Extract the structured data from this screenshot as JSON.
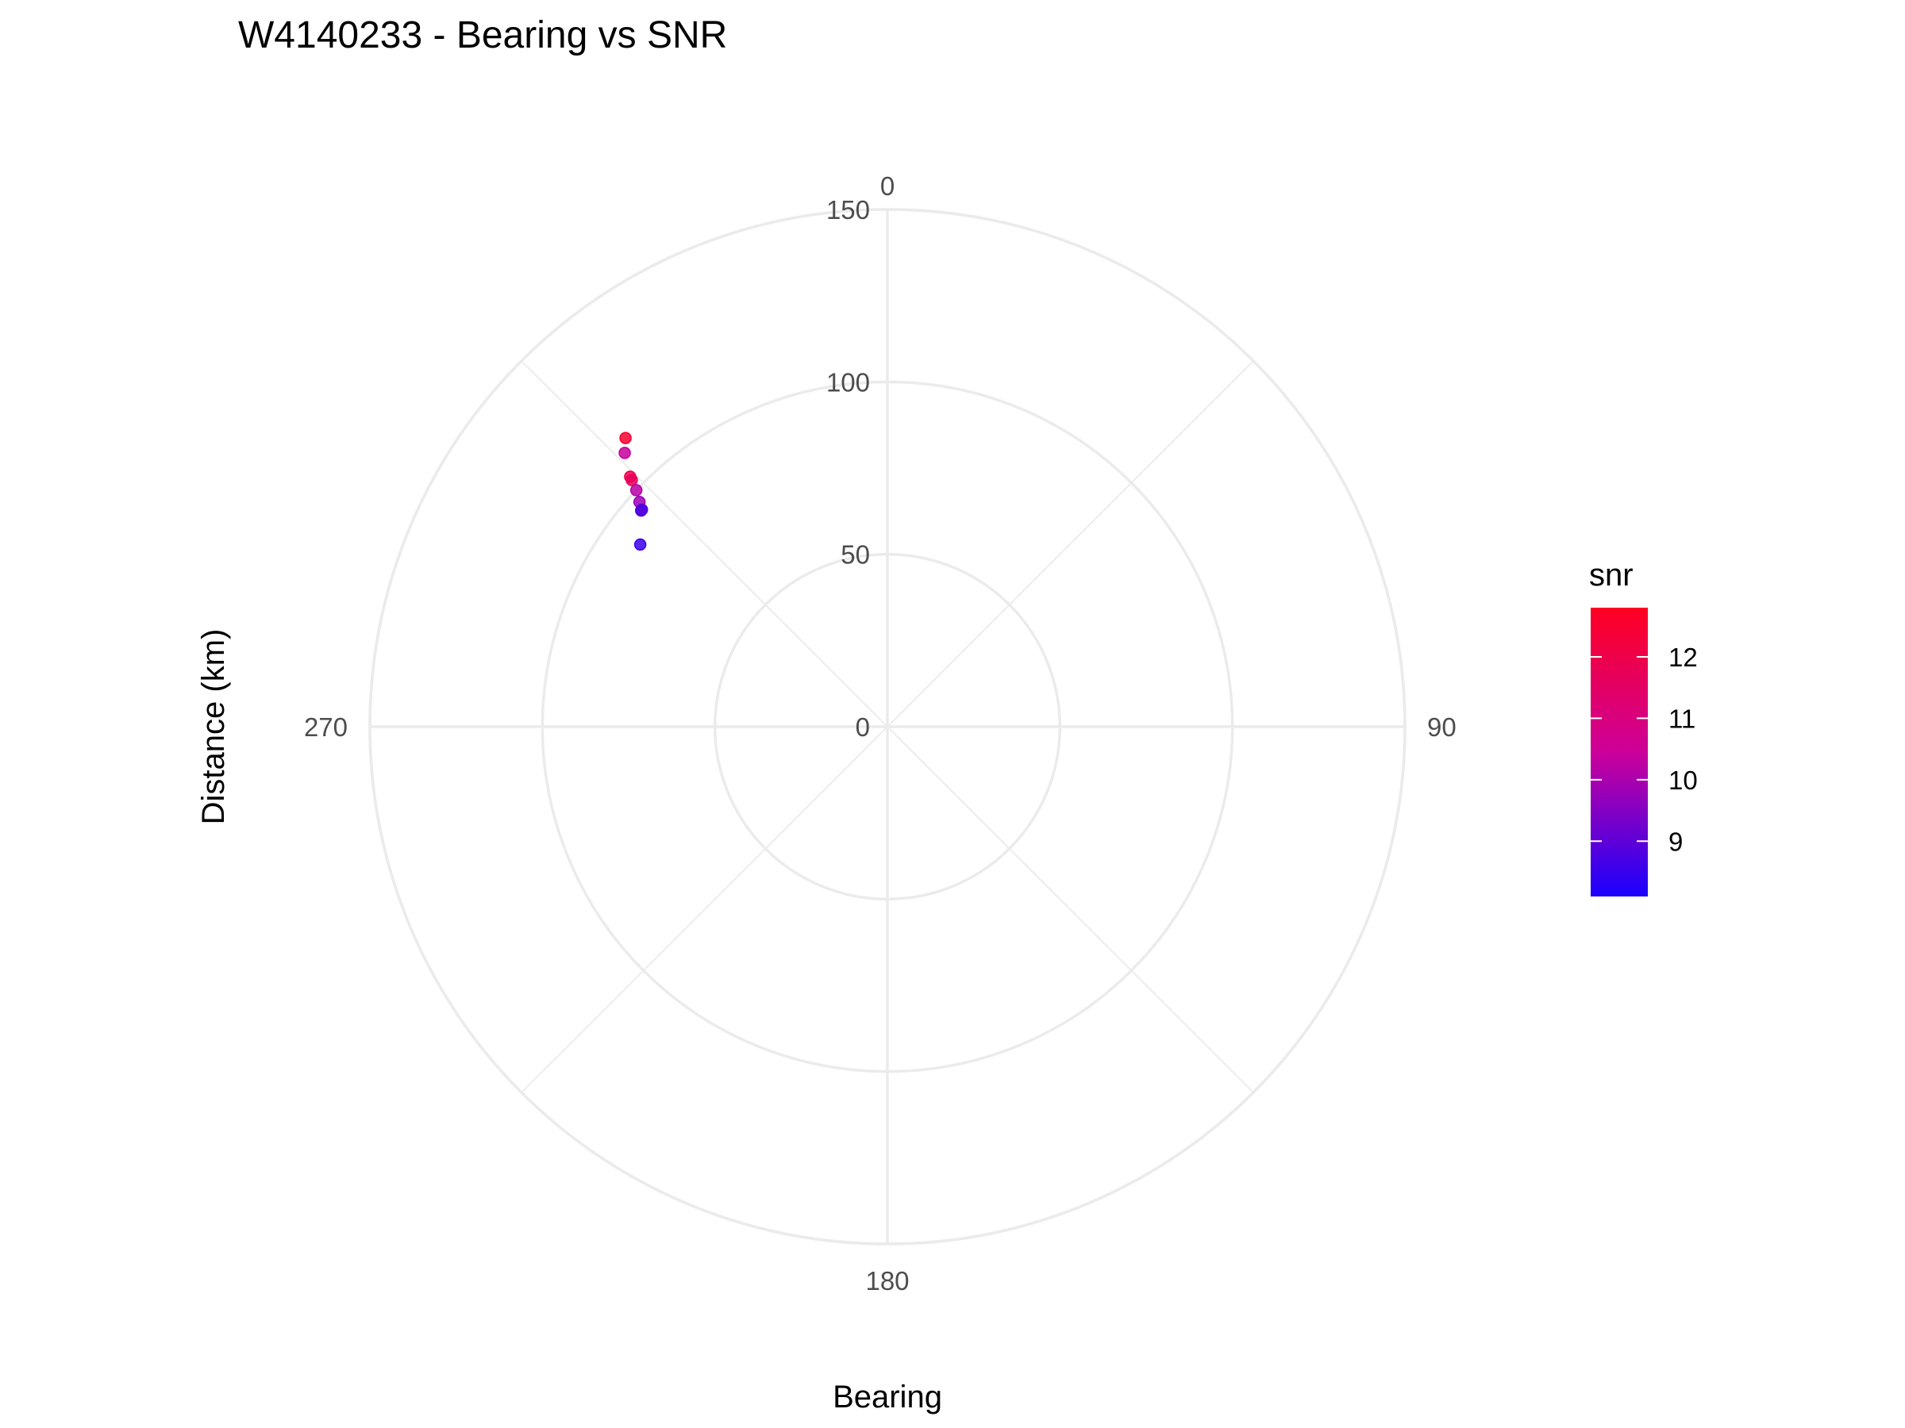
{
  "chart_data": {
    "type": "scatter",
    "coord": "polar",
    "title": "W4140233 - Bearing vs SNR",
    "xlabel": "Bearing",
    "ylabel": "Distance (km)",
    "theta_ticks": [
      "0",
      "90",
      "180",
      "270"
    ],
    "theta_range": [
      0,
      360
    ],
    "r_ticks": [
      "0",
      "50",
      "100",
      "150"
    ],
    "r_range": [
      0,
      150
    ],
    "minor_spokes": [
      45,
      135,
      225,
      315
    ],
    "grid": true,
    "legend": {
      "title": "snr",
      "position": "right",
      "type": "colorbar",
      "ticks": [
        "9",
        "10",
        "11",
        "12"
      ],
      "range": [
        8.1,
        12.8
      ],
      "low_color": "#1a00ff",
      "mid_color": "#cc0099",
      "high_color": "#ff0022"
    },
    "points": [
      {
        "bearing": 317.8,
        "distance": 113,
        "snr": 12.5
      },
      {
        "bearing": 316.2,
        "distance": 110,
        "snr": 10.4
      },
      {
        "bearing": 314.2,
        "distance": 104,
        "snr": 12.0
      },
      {
        "bearing": 314.0,
        "distance": 103,
        "snr": 11.7
      },
      {
        "bearing": 313.3,
        "distance": 100,
        "snr": 10.2
      },
      {
        "bearing": 312.2,
        "distance": 97,
        "snr": 9.8
      },
      {
        "bearing": 311.5,
        "distance": 95,
        "snr": 9.0
      },
      {
        "bearing": 311.3,
        "distance": 95,
        "snr": 8.8
      },
      {
        "bearing": 306.4,
        "distance": 89,
        "snr": 8.5
      }
    ]
  }
}
